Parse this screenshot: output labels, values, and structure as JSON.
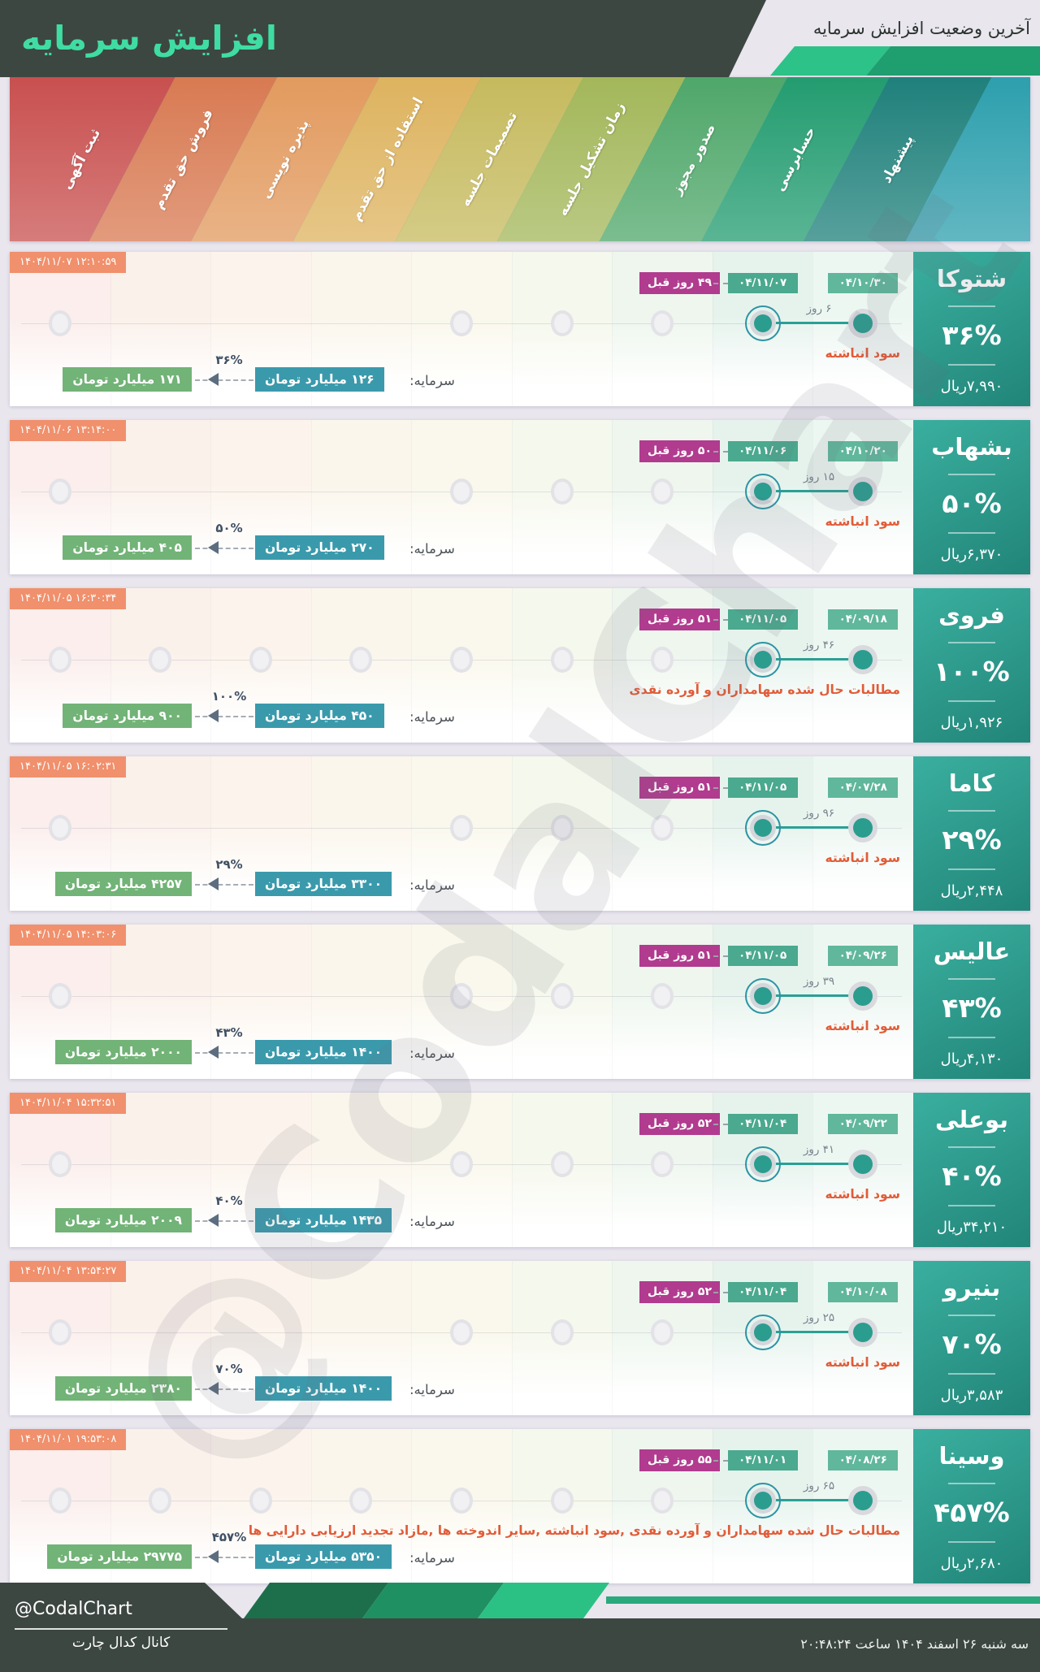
{
  "header": {
    "title": "افزایش سرمایه",
    "subtitle": "آخرین وضعیت افزایش سرمایه"
  },
  "stages": [
    {
      "label": "ثبت آگهی",
      "color": "#c8504f",
      "tint": "#fbeeec"
    },
    {
      "label": "فروش حق تقدم",
      "color": "#d87a52",
      "tint": "#fbf1eb"
    },
    {
      "label": "پذیره نویسی",
      "color": "#e29a5e",
      "tint": "#fcf4ec"
    },
    {
      "label": "استفاده از حق تقدم",
      "color": "#ddb35f",
      "tint": "#fbf6ec"
    },
    {
      "label": "تصمیمات جلسه",
      "color": "#c6ba5e",
      "tint": "#faf8ec"
    },
    {
      "label": "زمان تشکیل جلسه",
      "color": "#a3b75a",
      "tint": "#f5f8ec"
    },
    {
      "label": "صدور مجوز",
      "color": "#4fa76a",
      "tint": "#eef6ee"
    },
    {
      "label": "حسابرسی",
      "color": "#239c70",
      "tint": "#e6f3ed"
    },
    {
      "label": "پیشنهاد",
      "color": "#1f807b",
      "tint": "#edf7f2"
    }
  ],
  "band_cap_color": "#2d9fad",
  "palette": {
    "title_accent": "#3fdda3",
    "header_dark": "#3d4742",
    "timestamp_badge": "#f0906c",
    "days_ago_badge": "#b13b8e",
    "date_badge_recent": "#4aa98e",
    "date_badge_first": "#60b79b",
    "capital_before_badge": "#3a9aac",
    "capital_after_badge": "#72b377",
    "source_text": "#e25b38",
    "panel_teal_top": "#3aaf9f",
    "panel_teal_bottom": "#218579"
  },
  "companies": [
    {
      "name": "شتوکا",
      "percent": "۳۶%",
      "price": "۷,۹۹۰ریال",
      "timestamp": "۱۴۰۴/۱۱/۰۷ ۱۲:۱۰:۵۹",
      "ago": "۴۹ روز قبل",
      "date_recent": "۰۴/۱۱/۰۷",
      "date_first": "۰۴/۱۰/۳۰",
      "gap": "۶ روز",
      "description": "سود انباشته",
      "capital_label": "سرمایه:",
      "capital_old": "۱۲۶ میلیارد تومان",
      "capital_new": "۱۷۱ میلیارد تومان",
      "increase": "۳۶%",
      "dots": [
        1,
        5,
        6,
        7
      ]
    },
    {
      "name": "بشهاب",
      "percent": "۵۰%",
      "price": "۶,۳۷۰ریال",
      "timestamp": "۱۴۰۴/۱۱/۰۶ ۱۳:۱۴:۰۰",
      "ago": "۵۰ روز قبل",
      "date_recent": "۰۴/۱۱/۰۶",
      "date_first": "۰۴/۱۰/۲۰",
      "gap": "۱۵ روز",
      "description": "سود انباشته",
      "capital_label": "سرمایه:",
      "capital_old": "۲۷۰ میلیارد تومان",
      "capital_new": "۴۰۵ میلیارد تومان",
      "increase": "۵۰%",
      "dots": [
        1,
        5,
        6,
        7
      ]
    },
    {
      "name": "فروی",
      "percent": "۱۰۰%",
      "price": "۱,۹۲۶ریال",
      "timestamp": "۱۴۰۴/۱۱/۰۵ ۱۶:۳۰:۳۴",
      "ago": "۵۱ روز قبل",
      "date_recent": "۰۴/۱۱/۰۵",
      "date_first": "۰۴/۰۹/۱۸",
      "gap": "۴۶ روز",
      "description": "مطالبات حال شده سهامداران و آورده نقدی",
      "capital_label": "سرمایه:",
      "capital_old": "۴۵۰ میلیارد تومان",
      "capital_new": "۹۰۰ میلیارد تومان",
      "increase": "۱۰۰%",
      "dots": [
        1,
        2,
        3,
        4,
        5,
        6,
        7
      ]
    },
    {
      "name": "کاما",
      "percent": "۲۹%",
      "price": "۲,۴۴۸ریال",
      "timestamp": "۱۴۰۴/۱۱/۰۵ ۱۶:۰۲:۳۱",
      "ago": "۵۱ روز قبل",
      "date_recent": "۰۴/۱۱/۰۵",
      "date_first": "۰۴/۰۷/۲۸",
      "gap": "۹۶ روز",
      "description": "سود انباشته",
      "capital_label": "سرمایه:",
      "capital_old": "۳۳۰۰ میلیارد تومان",
      "capital_new": "۴۲۵۷ میلیارد تومان",
      "increase": "۲۹%",
      "dots": [
        1,
        5,
        6,
        7
      ]
    },
    {
      "name": "عالیس",
      "percent": "۴۳%",
      "price": "۴,۱۳۰ریال",
      "timestamp": "۱۴۰۴/۱۱/۰۵ ۱۴:۰۳:۰۶",
      "ago": "۵۱ روز قبل",
      "date_recent": "۰۴/۱۱/۰۵",
      "date_first": "۰۴/۰۹/۲۶",
      "gap": "۳۹ روز",
      "description": "سود انباشته",
      "capital_label": "سرمایه:",
      "capital_old": "۱۴۰۰ میلیارد تومان",
      "capital_new": "۲۰۰۰ میلیارد تومان",
      "increase": "۴۳%",
      "dots": [
        1,
        5,
        6,
        7
      ]
    },
    {
      "name": "بوعلی",
      "percent": "۴۰%",
      "price": "۳۴,۲۱۰ریال",
      "timestamp": "۱۴۰۴/۱۱/۰۴ ۱۵:۳۲:۵۱",
      "ago": "۵۲ روز قبل",
      "date_recent": "۰۴/۱۱/۰۴",
      "date_first": "۰۴/۰۹/۲۲",
      "gap": "۴۱ روز",
      "description": "سود انباشته",
      "capital_label": "سرمایه:",
      "capital_old": "۱۴۳۵ میلیارد تومان",
      "capital_new": "۲۰۰۹ میلیارد تومان",
      "increase": "۴۰%",
      "dots": [
        1,
        5,
        6,
        7
      ]
    },
    {
      "name": "بنیرو",
      "percent": "۷۰%",
      "price": "۳,۵۸۳ریال",
      "timestamp": "۱۴۰۴/۱۱/۰۴ ۱۳:۵۴:۲۷",
      "ago": "۵۲ روز قبل",
      "date_recent": "۰۴/۱۱/۰۴",
      "date_first": "۰۴/۱۰/۰۸",
      "gap": "۲۵ روز",
      "description": "سود انباشته",
      "capital_label": "سرمایه:",
      "capital_old": "۱۴۰۰ میلیارد تومان",
      "capital_new": "۲۳۸۰ میلیارد تومان",
      "increase": "۷۰%",
      "dots": [
        1,
        5,
        6,
        7
      ]
    },
    {
      "name": "وسینا",
      "percent": "۴۵۷%",
      "price": "۲,۶۸۰ریال",
      "timestamp": "۱۴۰۴/۱۱/۰۱ ۱۹:۵۳:۰۸",
      "ago": "۵۵ روز قبل",
      "date_recent": "۰۴/۱۱/۰۱",
      "date_first": "۰۴/۰۸/۲۶",
      "gap": "۶۵ روز",
      "description": "مطالبات حال شده سهامداران و آورده نقدی ,سود انباشته ,سایر اندوخته ها ,مازاد تجدید ارزیابی دارایی ها",
      "capital_label": "سرمایه:",
      "capital_old": "۵۳۵۰ میلیارد تومان",
      "capital_new": "۲۹۷۷۵ میلیارد تومان",
      "increase": "۴۵۷%",
      "dots": [
        1,
        2,
        3,
        4,
        5,
        6,
        7
      ]
    }
  ],
  "watermark": {
    "text": "@CodalChart"
  },
  "footer": {
    "handle": "@CodalChart",
    "channel": "کانال کدال چارت",
    "datetime": "سه شنبه ۲۶ اسفند ۱۴۰۴ ساعت ۲۰:۴۸:۲۴"
  },
  "chart_data": {
    "type": "table",
    "title": "آخرین وضعیت افزایش سرمایه",
    "columns": [
      "company",
      "increase_percent",
      "price_rial",
      "capital_before_billion_toman",
      "capital_after_billion_toman",
      "days_ago",
      "gap_days",
      "date_recent",
      "date_first",
      "source"
    ],
    "rows": [
      [
        "شتوکا",
        36,
        7990,
        126,
        171,
        49,
        6,
        "04/11/07",
        "04/10/30",
        "سود انباشته"
      ],
      [
        "بشهاب",
        50,
        6370,
        270,
        405,
        50,
        15,
        "04/11/06",
        "04/10/20",
        "سود انباشته"
      ],
      [
        "فروی",
        100,
        1926,
        450,
        900,
        51,
        46,
        "04/11/05",
        "04/09/18",
        "مطالبات حال شده سهامداران و آورده نقدی"
      ],
      [
        "کاما",
        29,
        2448,
        3300,
        4257,
        51,
        96,
        "04/11/05",
        "04/07/28",
        "سود انباشته"
      ],
      [
        "عالیس",
        43,
        4130,
        1400,
        2000,
        51,
        39,
        "04/11/05",
        "04/09/26",
        "سود انباشته"
      ],
      [
        "بوعلی",
        40,
        34210,
        1435,
        2009,
        52,
        41,
        "04/11/04",
        "04/09/22",
        "سود انباشته"
      ],
      [
        "بنیرو",
        70,
        3583,
        1400,
        2380,
        52,
        25,
        "04/11/04",
        "04/10/08",
        "سود انباشته"
      ],
      [
        "وسینا",
        457,
        2680,
        5350,
        29775,
        55,
        65,
        "04/11/01",
        "04/08/26",
        "مطالبات حال شده سهامداران و آورده نقدی ,سود انباشته ,سایر اندوخته ها ,مازاد تجدید ارزیابی دارایی ها"
      ]
    ],
    "stage_axis_rtl": [
      "پیشنهاد",
      "حسابرسی",
      "صدور مجوز",
      "زمان تشکیل جلسه",
      "تصمیمات جلسه",
      "استفاده از حق تقدم",
      "پذیره نویسی",
      "فروش حق تقدم",
      "ثبت آگهی"
    ],
    "current_stage_all_rows": "حسابرسی"
  }
}
